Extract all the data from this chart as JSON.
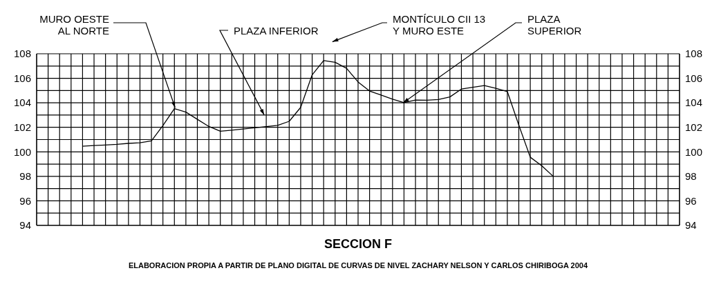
{
  "chart_data": {
    "type": "line",
    "title": "SECCION F",
    "annotations": [
      "MURO OESTE\nAL NORTE",
      "PLAZA INFERIOR",
      "MONTÍCULO CII 13\nY MURO ESTE",
      "PLAZA\nSUPERIOR",
      "ELABORACION PROPIA A PARTIR DE PLANO DIGITAL DE CURVAS DE NIVEL ZACHARY NELSON Y CARLOS CHIRIBOGA 2004"
    ],
    "categories": [
      null,
      null,
      null,
      null,
      null,
      null,
      null,
      null,
      null,
      null,
      null,
      null,
      null,
      null,
      null,
      null,
      null,
      null,
      null,
      null,
      null,
      null,
      null,
      null,
      null,
      null,
      null,
      null,
      null,
      null,
      null,
      null,
      null,
      null,
      null,
      null,
      null,
      null,
      null,
      null,
      null,
      null,
      null,
      null,
      null,
      null,
      null,
      null,
      null,
      null,
      null,
      null,
      null,
      null,
      null,
      null,
      null
    ],
    "series": [
      {
        "color": "#000000",
        "values": [
          null,
          null,
          null,
          null,
          100.46,
          100.51,
          100.56,
          100.61,
          100.69,
          100.74,
          100.89,
          102.14,
          103.52,
          103.24,
          102.65,
          102.07,
          101.68,
          101.77,
          101.87,
          101.96,
          102.06,
          102.16,
          102.49,
          103.63,
          106.28,
          107.45,
          107.3,
          106.81,
          105.7,
          104.96,
          104.63,
          104.3,
          104.02,
          104.22,
          104.21,
          104.27,
          104.48,
          105.12,
          105.27,
          105.41,
          105.18,
          104.92,
          102.18,
          99.56,
          98.86,
          98.0,
          null,
          null,
          null,
          null,
          null,
          null,
          null,
          null,
          null,
          null,
          null
        ]
      }
    ],
    "ylim": [
      94,
      108
    ],
    "yticks": [
      94,
      {
        "value": 95,
        "label": null
      },
      96,
      {
        "value": 97,
        "label": null
      },
      98,
      {
        "value": 99,
        "label": null
      },
      100,
      {
        "value": 101,
        "label": null
      },
      102,
      {
        "value": 103,
        "label": null
      },
      104,
      {
        "value": 105,
        "label": null
      },
      106,
      {
        "value": 107,
        "label": null
      },
      108
    ],
    "y2lim": [
      94,
      108
    ],
    "y2ticks": [
      94,
      {
        "value": 95,
        "label": null
      },
      96,
      {
        "value": 97,
        "label": null
      },
      98,
      {
        "value": 99,
        "label": null
      },
      100,
      {
        "value": 101,
        "label": null
      },
      102,
      {
        "value": 103,
        "label": null
      },
      104,
      {
        "value": 105,
        "label": null
      },
      106,
      {
        "value": 107,
        "label": null
      },
      108
    ],
    "tick_labels": "y",
    "grid": true,
    "marker": "none",
    "line_style": "solid"
  }
}
